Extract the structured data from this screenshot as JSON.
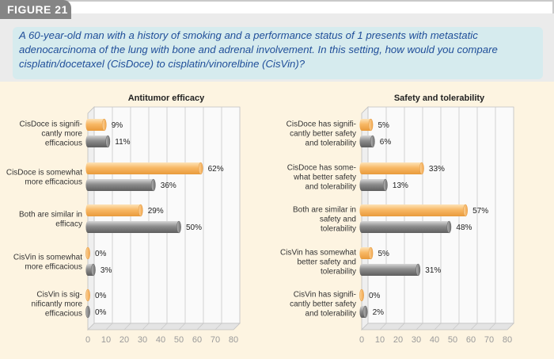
{
  "figure_label": "FIGURE 21",
  "question": "A 60-year-old man with a history of smoking and a performance status of 1 presents with metastatic adenocarcinoma of the lung with bone and adrenal involvement. In this setting, how would you compare cisplatin/docetaxel (CisDoce) to cisplatin/vinorelbine (CisVin)?",
  "colors": {
    "series1": "#f7b25c",
    "series2": "#8a8a8a",
    "grid": "#bbbbbb",
    "tick": "#9a9a9a"
  },
  "chart_data": [
    {
      "type": "bar",
      "orientation": "horizontal",
      "title": "Antitumor efficacy",
      "xlim": [
        0,
        80
      ],
      "ticks": [
        0,
        10,
        20,
        30,
        40,
        50,
        60,
        70,
        80
      ],
      "grid": true,
      "categories": [
        [
          "CisDoce is signifi-",
          "cantly more",
          "efficacious"
        ],
        [
          "CisDoce is somewhat",
          "more efficacious"
        ],
        [
          "Both are similar in",
          "efficacy"
        ],
        [
          "CisVin is somewhat",
          "more efficacious"
        ],
        [
          "CisVin is sig-",
          "nificantly more",
          "efficacious"
        ]
      ],
      "series": [
        {
          "values": [
            9,
            62,
            29,
            0,
            0
          ],
          "labels": [
            "9%",
            "62%",
            "29%",
            "0%",
            "0%"
          ]
        },
        {
          "values": [
            11,
            36,
            50,
            3,
            0
          ],
          "labels": [
            "11%",
            "36%",
            "50%",
            "3%",
            "0%"
          ]
        }
      ]
    },
    {
      "type": "bar",
      "orientation": "horizontal",
      "title": "Safety and tolerability",
      "xlim": [
        0,
        80
      ],
      "ticks": [
        0,
        10,
        20,
        30,
        40,
        50,
        60,
        70,
        80
      ],
      "grid": true,
      "categories": [
        [
          "CisDoce has signifi-",
          "cantly better safety",
          "and tolerability"
        ],
        [
          "CisDoce has some-",
          "what better safety",
          "and tolerability"
        ],
        [
          "Both are similar in",
          "safety and",
          "tolerability"
        ],
        [
          "CisVin has somewhat",
          "better safety and",
          "tolerability"
        ],
        [
          "CisVin has signifi-",
          "cantly better safety",
          "and tolerability"
        ]
      ],
      "series": [
        {
          "values": [
            5,
            33,
            57,
            5,
            0
          ],
          "labels": [
            "5%",
            "33%",
            "57%",
            "5%",
            "0%"
          ]
        },
        {
          "values": [
            6,
            13,
            48,
            31,
            2
          ],
          "labels": [
            "6%",
            "13%",
            "48%",
            "31%",
            "2%"
          ]
        }
      ]
    }
  ]
}
